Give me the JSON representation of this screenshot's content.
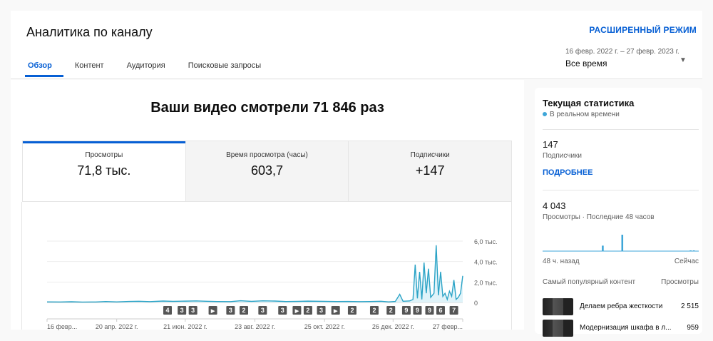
{
  "header": {
    "title": "Аналитика по каналу",
    "advanced_mode": "РАСШИРЕННЫЙ РЕЖИМ",
    "tabs": [
      {
        "label": "Обзор",
        "active": true
      },
      {
        "label": "Контент"
      },
      {
        "label": "Аудитория"
      },
      {
        "label": "Поисковые запросы"
      }
    ],
    "date_range": "16 февр. 2022 г. – 27 февр. 2023 г.",
    "period": "Все время",
    "caret_icon": "caret-down-icon"
  },
  "main": {
    "headline": "Ваши видео смотрели 71 846 раз",
    "metrics": [
      {
        "label": "Просмотры",
        "value": "71,8 тыс.",
        "active": true
      },
      {
        "label": "Время просмотра (часы)",
        "value": "603,7"
      },
      {
        "label": "Подписчики",
        "value": "+147"
      }
    ]
  },
  "chart_data": {
    "type": "line",
    "color": "#2ba3c6",
    "fill": "#dff3f9",
    "ylim": [
      0,
      6000
    ],
    "y_ticks": [
      {
        "v": 0,
        "label": "0"
      },
      {
        "v": 2000,
        "label": "2,0 тыс."
      },
      {
        "v": 4000,
        "label": "4,0 тыс."
      },
      {
        "v": 6000,
        "label": "6,0 тыс."
      }
    ],
    "x_range": [
      "2022-02-16",
      "2023-02-27"
    ],
    "x_ticks": [
      {
        "d": "2022-02-16",
        "label": "16 февр..."
      },
      {
        "d": "2022-04-20",
        "label": "20 апр. 2022 г."
      },
      {
        "d": "2022-06-21",
        "label": "21 июн. 2022 г."
      },
      {
        "d": "2022-08-23",
        "label": "23 авг. 2022 г."
      },
      {
        "d": "2022-10-25",
        "label": "25 окт. 2022 г."
      },
      {
        "d": "2022-12-26",
        "label": "26 дек. 2022 г."
      },
      {
        "d": "2023-02-27",
        "label": "27 февр..."
      }
    ],
    "points": [
      [
        "2022-02-16",
        60
      ],
      [
        "2022-02-28",
        50
      ],
      [
        "2022-03-10",
        70
      ],
      [
        "2022-03-20",
        40
      ],
      [
        "2022-04-01",
        50
      ],
      [
        "2022-04-10",
        90
      ],
      [
        "2022-04-20",
        60
      ],
      [
        "2022-05-01",
        100
      ],
      [
        "2022-05-10",
        120
      ],
      [
        "2022-05-20",
        80
      ],
      [
        "2022-06-01",
        140
      ],
      [
        "2022-06-10",
        110
      ],
      [
        "2022-06-21",
        130
      ],
      [
        "2022-07-01",
        150
      ],
      [
        "2022-07-10",
        120
      ],
      [
        "2022-07-20",
        90
      ],
      [
        "2022-08-01",
        80
      ],
      [
        "2022-08-10",
        170
      ],
      [
        "2022-08-20",
        110
      ],
      [
        "2022-08-30",
        160
      ],
      [
        "2022-09-10",
        140
      ],
      [
        "2022-09-20",
        90
      ],
      [
        "2022-10-01",
        110
      ],
      [
        "2022-10-10",
        130
      ],
      [
        "2022-10-25",
        110
      ],
      [
        "2022-11-05",
        90
      ],
      [
        "2022-11-15",
        100
      ],
      [
        "2022-11-25",
        80
      ],
      [
        "2022-12-05",
        90
      ],
      [
        "2022-12-15",
        120
      ],
      [
        "2022-12-22",
        60
      ],
      [
        "2022-12-28",
        100
      ],
      [
        "2023-01-01",
        800
      ],
      [
        "2023-01-04",
        120
      ],
      [
        "2023-01-10",
        150
      ],
      [
        "2023-01-13",
        300
      ],
      [
        "2023-01-15",
        3700
      ],
      [
        "2023-01-17",
        400
      ],
      [
        "2023-01-19",
        3000
      ],
      [
        "2023-01-21",
        300
      ],
      [
        "2023-01-23",
        3900
      ],
      [
        "2023-01-25",
        900
      ],
      [
        "2023-01-27",
        3300
      ],
      [
        "2023-01-29",
        500
      ],
      [
        "2023-02-01",
        900
      ],
      [
        "2023-02-03",
        5600
      ],
      [
        "2023-02-05",
        700
      ],
      [
        "2023-02-07",
        3000
      ],
      [
        "2023-02-09",
        600
      ],
      [
        "2023-02-11",
        900
      ],
      [
        "2023-02-13",
        300
      ],
      [
        "2023-02-15",
        1100
      ],
      [
        "2023-02-17",
        600
      ],
      [
        "2023-02-19",
        2200
      ],
      [
        "2023-02-21",
        300
      ],
      [
        "2023-02-23",
        500
      ],
      [
        "2023-02-25",
        900
      ],
      [
        "2023-02-27",
        2600
      ]
    ],
    "markers": [
      {
        "d": "2022-06-05",
        "label": "4"
      },
      {
        "d": "2022-06-18",
        "label": "3"
      },
      {
        "d": "2022-06-28",
        "label": "3"
      },
      {
        "d": "2022-07-16",
        "label": "▶"
      },
      {
        "d": "2022-08-01",
        "label": "3"
      },
      {
        "d": "2022-08-13",
        "label": "2"
      },
      {
        "d": "2022-08-30",
        "label": "3"
      },
      {
        "d": "2022-09-17",
        "label": "3"
      },
      {
        "d": "2022-09-30",
        "label": "▶"
      },
      {
        "d": "2022-10-10",
        "label": "2"
      },
      {
        "d": "2022-10-22",
        "label": "3"
      },
      {
        "d": "2022-11-04",
        "label": "▶"
      },
      {
        "d": "2022-11-19",
        "label": "2"
      },
      {
        "d": "2022-12-09",
        "label": "2"
      },
      {
        "d": "2022-12-24",
        "label": "2"
      },
      {
        "d": "2023-01-07",
        "label": "9"
      },
      {
        "d": "2023-01-17",
        "label": "9"
      },
      {
        "d": "2023-01-28",
        "label": "9"
      },
      {
        "d": "2023-02-07",
        "label": "6"
      },
      {
        "d": "2023-02-19",
        "label": "7"
      }
    ]
  },
  "side": {
    "title": "Текущая статистика",
    "live": "В реальном времени",
    "subscribers": {
      "value": "147",
      "label": "Подписчики"
    },
    "more": "ПОДРОБНЕЕ",
    "views": {
      "value": "4 043",
      "label": "Просмотры · Последние 48 часов"
    },
    "mini_chart": {
      "start": "48 ч. назад",
      "end": "Сейчас",
      "bars": [
        0,
        0,
        0,
        0,
        0,
        0,
        0,
        0,
        0,
        0,
        0,
        0,
        0,
        0,
        0,
        0,
        0,
        0,
        300,
        0,
        0,
        0,
        0,
        0,
        900,
        0,
        0,
        0,
        0,
        0,
        0,
        0,
        0,
        0,
        0,
        0,
        0,
        0,
        0,
        0,
        0,
        0,
        0,
        0,
        0,
        40,
        40,
        0
      ]
    },
    "popular_header": "Самый популярный контент",
    "popular_views_header": "Просмотры",
    "popular": [
      {
        "title": "Делаем ребра жесткости",
        "views": "2 515"
      },
      {
        "title": "Модернизация шкафа в л...",
        "views": "959"
      }
    ]
  }
}
